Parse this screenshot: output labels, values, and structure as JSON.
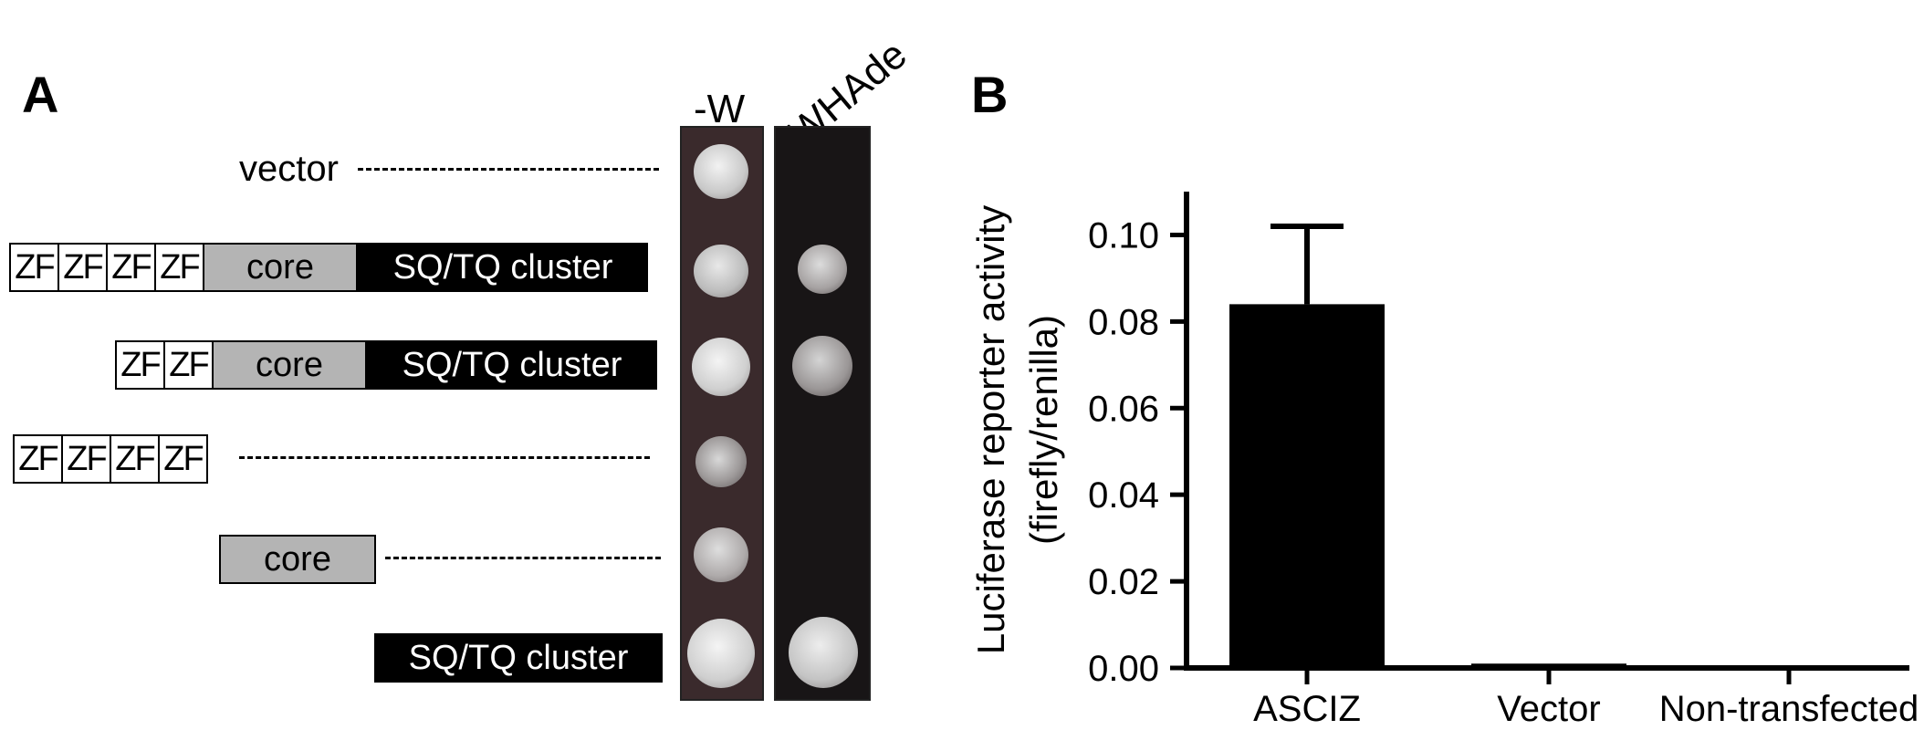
{
  "panel_a": {
    "letter": "A",
    "column_headers": [
      "-W",
      "-WHAde"
    ],
    "vector_label": "vector",
    "domain_labels": {
      "zf": "ZF",
      "core": "core",
      "sq": "SQ/TQ cluster"
    }
  },
  "panel_b": {
    "letter": "B"
  },
  "chart_data": {
    "type": "bar",
    "categories": [
      "ASCIZ",
      "Vector",
      "Non-transfected"
    ],
    "values": [
      0.084,
      0.001,
      0.0005
    ],
    "error_bars": [
      0.018,
      0,
      0
    ],
    "ylabel_line1": "Luciferase reporter activity",
    "ylabel_line2": "(firefly/renilla)",
    "ylim": [
      0,
      0.11
    ],
    "yticks": [
      "0.00",
      "0.02",
      "0.04",
      "0.06",
      "0.08",
      "0.10"
    ],
    "ytick_values": [
      0,
      0.02,
      0.04,
      0.06,
      0.08,
      0.1
    ],
    "grid": false,
    "bar_color": "#000000"
  }
}
